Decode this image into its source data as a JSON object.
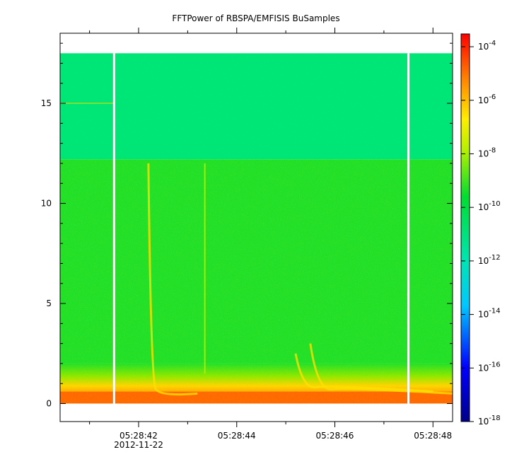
{
  "chart_data": {
    "type": "heatmap",
    "title": "FFTPower of RBSPA/EMFISIS  BuSamples",
    "x": {
      "ticks": [
        "05:28:42",
        "05:28:44",
        "05:28:46",
        "05:28:48"
      ],
      "tick_seconds": [
        42,
        44,
        46,
        48
      ],
      "range_seconds": [
        40.4,
        48.4
      ],
      "date_label": "2012-11-22"
    },
    "y": {
      "ticks": [
        "0",
        "5",
        "10",
        "15"
      ],
      "tick_values": [
        0,
        5,
        10,
        15
      ],
      "range": [
        -0.9,
        18.5
      ]
    },
    "colorbar": {
      "scale": "log",
      "range": [
        1e-18,
        0.0003
      ],
      "tick_bases": [
        "10",
        "10",
        "10",
        "10",
        "10",
        "10",
        "10",
        "10"
      ],
      "tick_exponents": [
        "-4",
        "-6",
        "-8",
        "-10",
        "-12",
        "-14",
        "-16",
        "-18"
      ],
      "tick_exp_values": [
        -4,
        -6,
        -8,
        -10,
        -12,
        -14,
        -16,
        -18
      ]
    },
    "data_gaps_seconds": [
      41.5,
      47.5
    ],
    "upper_band_start": 12.2,
    "spectrogram_top": 17.5,
    "emissions": [
      {
        "type": "falling tone",
        "start_s": 42.2,
        "start_val": 12.0,
        "end_s": 43.2,
        "end_val": 0.5
      },
      {
        "type": "falling tone",
        "start_s": 45.5,
        "start_val": 3.0,
        "end_s": 48.4,
        "end_val": 0.5
      },
      {
        "type": "falling tone",
        "start_s": 45.2,
        "start_val": 2.5,
        "end_s": 48.0,
        "end_val": 0.6
      },
      {
        "type": "vertical line",
        "start_s": 43.35,
        "start_val": 12.0,
        "end_s": 43.35,
        "end_val": 1.5
      }
    ],
    "colors": {
      "upper_band": "#00e676",
      "lower_band": "#22e028",
      "low_freq": "#ffd400",
      "bottom": "#ff6a00"
    }
  }
}
